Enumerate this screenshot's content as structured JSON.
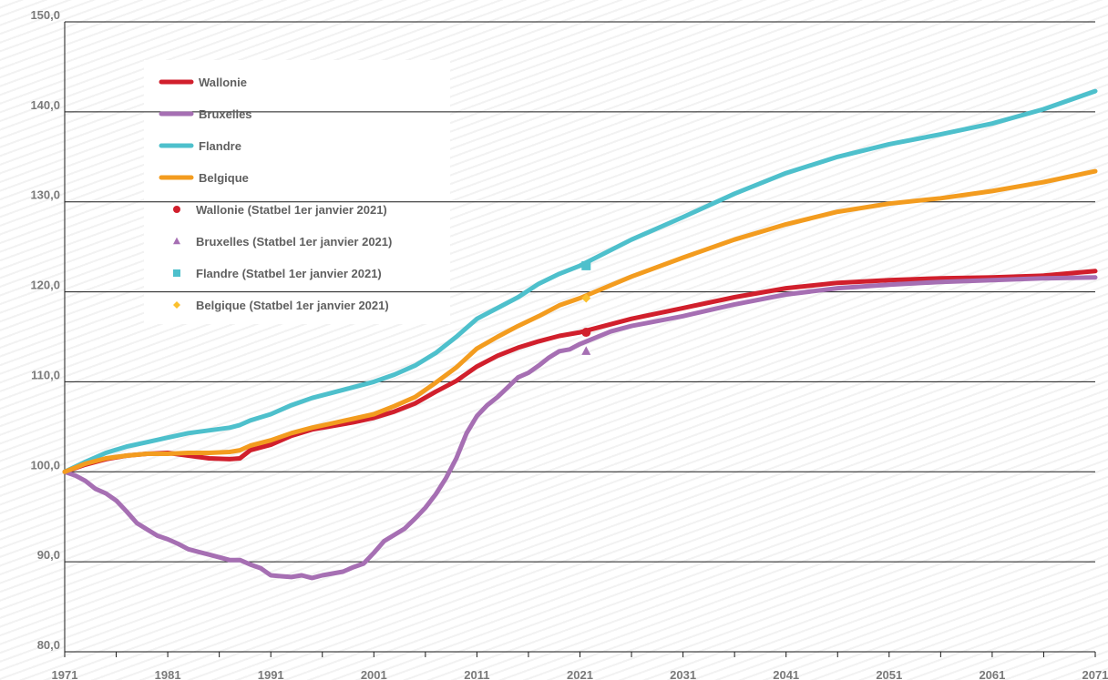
{
  "chart_data": {
    "type": "line",
    "title": "",
    "xlabel": "",
    "ylabel": "",
    "xlim": [
      1971,
      2071
    ],
    "ylim": [
      80,
      150
    ],
    "y_ticks": [
      "80,0",
      "90,0",
      "100,0",
      "110,0",
      "120,0",
      "130,0",
      "140,0",
      "150,0"
    ],
    "x_ticks": [
      "1971",
      "1981",
      "1991",
      "2001",
      "2011",
      "2021",
      "2031",
      "2041",
      "2051",
      "2061",
      "2071"
    ],
    "grid": "horizontal",
    "legend_position": "top-left",
    "series": [
      {
        "name": "Wallonie",
        "color": "#d11f2c",
        "points": [
          [
            1971,
            100
          ],
          [
            1973,
            100.8
          ],
          [
            1975,
            101.4
          ],
          [
            1977,
            101.8
          ],
          [
            1979,
            102.0
          ],
          [
            1981,
            102.1
          ],
          [
            1983,
            101.8
          ],
          [
            1985,
            101.5
          ],
          [
            1987,
            101.4
          ],
          [
            1988,
            101.5
          ],
          [
            1989,
            102.4
          ],
          [
            1991,
            103.0
          ],
          [
            1993,
            104.0
          ],
          [
            1995,
            104.7
          ],
          [
            1997,
            105.1
          ],
          [
            1999,
            105.5
          ],
          [
            2001,
            106.0
          ],
          [
            2003,
            106.7
          ],
          [
            2005,
            107.6
          ],
          [
            2007,
            108.9
          ],
          [
            2009,
            110.1
          ],
          [
            2011,
            111.7
          ],
          [
            2013,
            112.9
          ],
          [
            2015,
            113.8
          ],
          [
            2017,
            114.5
          ],
          [
            2019,
            115.1
          ],
          [
            2021,
            115.5
          ],
          [
            2026,
            117.0
          ],
          [
            2031,
            118.2
          ],
          [
            2036,
            119.4
          ],
          [
            2041,
            120.4
          ],
          [
            2046,
            121.0
          ],
          [
            2051,
            121.3
          ],
          [
            2056,
            121.5
          ],
          [
            2061,
            121.6
          ],
          [
            2066,
            121.8
          ],
          [
            2071,
            122.3
          ]
        ]
      },
      {
        "name": "Bruxelles",
        "color": "#a66fb3",
        "points": [
          [
            1971,
            100
          ],
          [
            1972,
            99.6
          ],
          [
            1973,
            99.0
          ],
          [
            1974,
            98.1
          ],
          [
            1975,
            97.6
          ],
          [
            1976,
            96.8
          ],
          [
            1977,
            95.6
          ],
          [
            1978,
            94.3
          ],
          [
            1979,
            93.6
          ],
          [
            1980,
            92.9
          ],
          [
            1981,
            92.5
          ],
          [
            1982,
            92.0
          ],
          [
            1983,
            91.4
          ],
          [
            1984,
            91.1
          ],
          [
            1985,
            90.8
          ],
          [
            1986,
            90.5
          ],
          [
            1987,
            90.2
          ],
          [
            1988,
            90.2
          ],
          [
            1989,
            89.7
          ],
          [
            1990,
            89.3
          ],
          [
            1991,
            88.5
          ],
          [
            1992,
            88.4
          ],
          [
            1993,
            88.3
          ],
          [
            1994,
            88.5
          ],
          [
            1995,
            88.2
          ],
          [
            1996,
            88.5
          ],
          [
            1997,
            88.7
          ],
          [
            1998,
            88.9
          ],
          [
            1999,
            89.4
          ],
          [
            2000,
            89.8
          ],
          [
            2001,
            91.0
          ],
          [
            2002,
            92.3
          ],
          [
            2003,
            93.0
          ],
          [
            2004,
            93.7
          ],
          [
            2005,
            94.8
          ],
          [
            2006,
            96.0
          ],
          [
            2007,
            97.5
          ],
          [
            2008,
            99.3
          ],
          [
            2009,
            101.5
          ],
          [
            2010,
            104.3
          ],
          [
            2011,
            106.2
          ],
          [
            2012,
            107.4
          ],
          [
            2013,
            108.3
          ],
          [
            2014,
            109.4
          ],
          [
            2015,
            110.5
          ],
          [
            2016,
            111.0
          ],
          [
            2017,
            111.8
          ],
          [
            2018,
            112.7
          ],
          [
            2019,
            113.4
          ],
          [
            2020,
            113.6
          ],
          [
            2021,
            114.2
          ],
          [
            2024,
            115.6
          ],
          [
            2026,
            116.2
          ],
          [
            2031,
            117.3
          ],
          [
            2036,
            118.6
          ],
          [
            2041,
            119.7
          ],
          [
            2046,
            120.4
          ],
          [
            2051,
            120.8
          ],
          [
            2056,
            121.1
          ],
          [
            2061,
            121.3
          ],
          [
            2066,
            121.5
          ],
          [
            2071,
            121.6
          ]
        ]
      },
      {
        "name": "Flandre",
        "color": "#4ec0cc",
        "points": [
          [
            1971,
            100
          ],
          [
            1973,
            101.1
          ],
          [
            1975,
            102.1
          ],
          [
            1977,
            102.8
          ],
          [
            1979,
            103.3
          ],
          [
            1981,
            103.8
          ],
          [
            1983,
            104.3
          ],
          [
            1985,
            104.6
          ],
          [
            1987,
            104.9
          ],
          [
            1988,
            105.2
          ],
          [
            1989,
            105.7
          ],
          [
            1991,
            106.4
          ],
          [
            1993,
            107.4
          ],
          [
            1995,
            108.2
          ],
          [
            1997,
            108.8
          ],
          [
            1999,
            109.4
          ],
          [
            2001,
            110.0
          ],
          [
            2003,
            110.8
          ],
          [
            2005,
            111.8
          ],
          [
            2007,
            113.2
          ],
          [
            2009,
            115.0
          ],
          [
            2011,
            117.0
          ],
          [
            2013,
            118.2
          ],
          [
            2015,
            119.4
          ],
          [
            2017,
            120.9
          ],
          [
            2019,
            122.0
          ],
          [
            2021,
            122.9
          ],
          [
            2026,
            125.8
          ],
          [
            2031,
            128.3
          ],
          [
            2036,
            130.9
          ],
          [
            2041,
            133.2
          ],
          [
            2046,
            135.0
          ],
          [
            2051,
            136.4
          ],
          [
            2056,
            137.5
          ],
          [
            2061,
            138.7
          ],
          [
            2066,
            140.3
          ],
          [
            2071,
            142.3
          ]
        ]
      },
      {
        "name": "Belgique",
        "color": "#f39c1f",
        "points": [
          [
            1971,
            100
          ],
          [
            1973,
            100.9
          ],
          [
            1975,
            101.5
          ],
          [
            1977,
            101.8
          ],
          [
            1979,
            102.0
          ],
          [
            1981,
            102.0
          ],
          [
            1983,
            102.1
          ],
          [
            1985,
            102.1
          ],
          [
            1987,
            102.2
          ],
          [
            1988,
            102.4
          ],
          [
            1989,
            102.9
          ],
          [
            1991,
            103.5
          ],
          [
            1993,
            104.3
          ],
          [
            1995,
            104.9
          ],
          [
            1997,
            105.4
          ],
          [
            1999,
            105.9
          ],
          [
            2001,
            106.4
          ],
          [
            2003,
            107.3
          ],
          [
            2005,
            108.3
          ],
          [
            2007,
            109.9
          ],
          [
            2009,
            111.6
          ],
          [
            2011,
            113.7
          ],
          [
            2013,
            115.0
          ],
          [
            2015,
            116.2
          ],
          [
            2017,
            117.3
          ],
          [
            2019,
            118.5
          ],
          [
            2021,
            119.3
          ],
          [
            2026,
            121.7
          ],
          [
            2031,
            123.8
          ],
          [
            2036,
            125.8
          ],
          [
            2041,
            127.5
          ],
          [
            2046,
            128.9
          ],
          [
            2051,
            129.8
          ],
          [
            2056,
            130.4
          ],
          [
            2061,
            131.2
          ],
          [
            2066,
            132.2
          ],
          [
            2071,
            133.4
          ]
        ]
      }
    ],
    "markers": [
      {
        "name": "Wallonie (Statbel 1er janvier 2021)",
        "color": "#d11f2c",
        "shape": "circle",
        "x": 2021.6,
        "y": 115.5
      },
      {
        "name": "Bruxelles (Statbel 1er janvier 2021)",
        "color": "#a66fb3",
        "shape": "triangle",
        "x": 2021.6,
        "y": 113.4
      },
      {
        "name": "Flandre (Statbel 1er janvier 2021)",
        "color": "#4ec0cc",
        "shape": "square",
        "x": 2021.6,
        "y": 122.9
      },
      {
        "name": "Belgique (Statbel 1er janvier 2021)",
        "color": "#fbc02d",
        "shape": "diamond",
        "x": 2021.6,
        "y": 119.3
      }
    ]
  }
}
